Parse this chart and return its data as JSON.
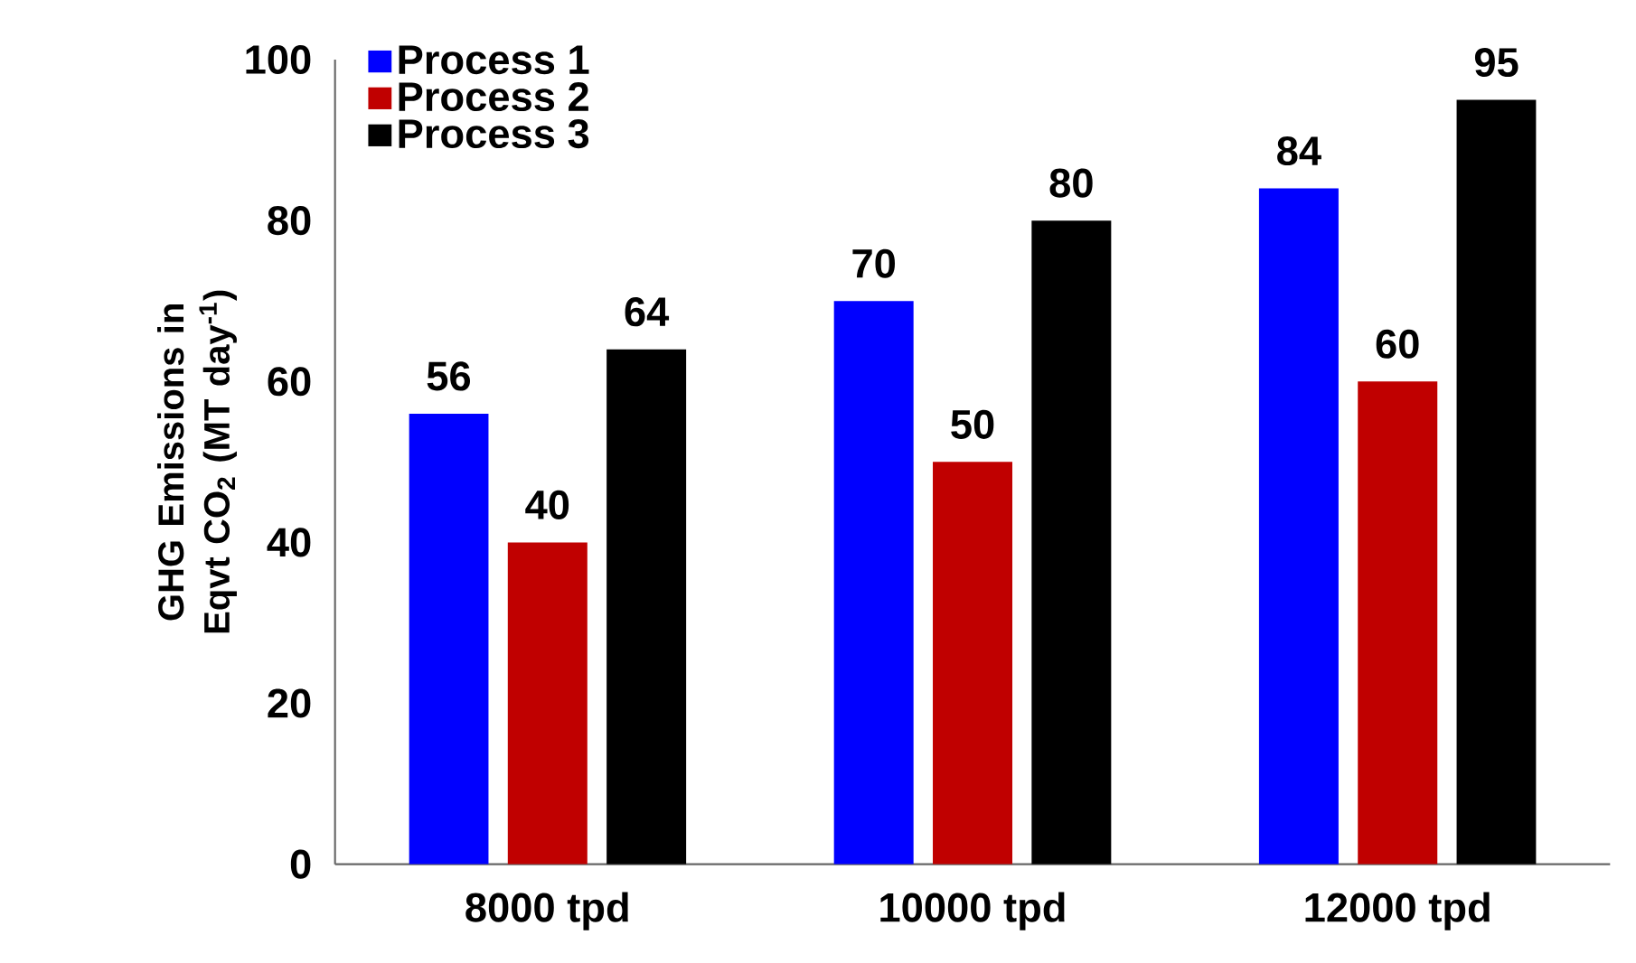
{
  "chart_data": {
    "type": "bar",
    "ylabel": "GHG Emissions in Eqvt CO$_{2}$ (MT day$^{-1}$)",
    "categories": [
      "8000 tpd",
      "10000 tpd",
      "12000 tpd"
    ],
    "series": [
      {
        "name": "Process 1",
        "color": "#0000ff",
        "values": [
          56,
          70,
          84
        ]
      },
      {
        "name": "Process 2",
        "color": "#c00000",
        "values": [
          40,
          50,
          60
        ]
      },
      {
        "name": "Process 3",
        "color": "#000000",
        "values": [
          64,
          80,
          95
        ]
      }
    ],
    "ylim": [
      0,
      100
    ],
    "yticks": [
      0,
      20,
      40,
      60,
      80,
      100
    ],
    "grid": false,
    "legend": "top left",
    "data_labels": true
  }
}
